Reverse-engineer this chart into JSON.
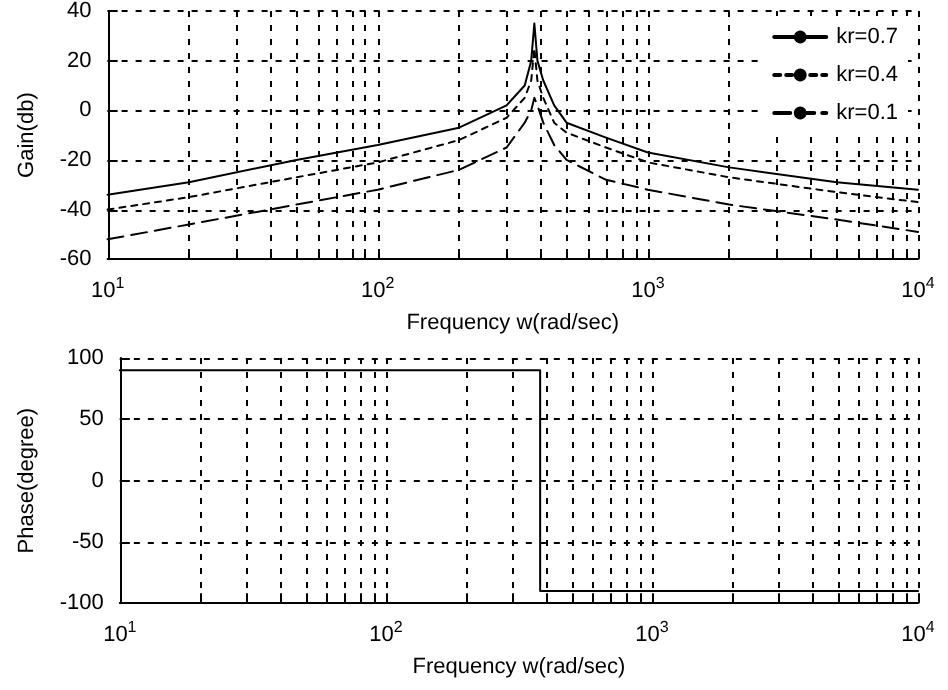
{
  "chart_data": [
    {
      "type": "line",
      "xlabel": "Frequency w(rad/sec)",
      "ylabel": "Gain(db)",
      "log": "x",
      "x": [
        10,
        20,
        50,
        100,
        200,
        300,
        350,
        370,
        380,
        390,
        410,
        450,
        500,
        700,
        1000,
        2000,
        5000,
        10000
      ],
      "series": [
        {
          "name": "kr=0.7",
          "color": "#000000",
          "line_style": "solid",
          "values": [
            -34,
            -29,
            -20,
            -14,
            -7,
            2,
            10,
            20,
            35,
            20,
            12,
            2,
            -5,
            -11,
            -17,
            -23,
            -29,
            -32
          ]
        },
        {
          "name": "kr=0.4",
          "color": "#000000",
          "line_style": "dotted",
          "values": [
            -40,
            -35,
            -27,
            -21,
            -12,
            -3,
            5,
            12,
            25,
            12,
            5,
            -5,
            -9,
            -15,
            -21,
            -27,
            -33,
            -37
          ]
        },
        {
          "name": "kr=0.1",
          "color": "#000000",
          "line_style": "dashed",
          "values": [
            -52,
            -46,
            -38,
            -32,
            -24,
            -15,
            -5,
            0,
            5,
            2,
            -5,
            -14,
            -20,
            -28,
            -32,
            -38,
            -44,
            -49
          ]
        }
      ],
      "xlim": [
        10,
        10000
      ],
      "xticks": [
        {
          "value": 10,
          "label": "10$^{1}$"
        },
        {
          "value": 20,
          "label": null
        },
        {
          "value": 30,
          "label": null
        },
        {
          "value": 40,
          "label": null
        },
        {
          "value": 50,
          "label": null
        },
        {
          "value": 60,
          "label": null
        },
        {
          "value": 70,
          "label": null
        },
        {
          "value": 80,
          "label": null
        },
        {
          "value": 90,
          "label": null
        },
        {
          "value": 100,
          "label": "10$^{2}$"
        },
        {
          "value": 200,
          "label": null
        },
        {
          "value": 300,
          "label": null
        },
        {
          "value": 400,
          "label": null
        },
        {
          "value": 500,
          "label": null
        },
        {
          "value": 600,
          "label": null
        },
        {
          "value": 700,
          "label": null
        },
        {
          "value": 800,
          "label": null
        },
        {
          "value": 900,
          "label": null
        },
        {
          "value": 1000,
          "label": "10$^{3}$"
        },
        {
          "value": 2000,
          "label": null
        },
        {
          "value": 3000,
          "label": null
        },
        {
          "value": 4000,
          "label": null
        },
        {
          "value": 5000,
          "label": null
        },
        {
          "value": 6000,
          "label": null
        },
        {
          "value": 7000,
          "label": null
        },
        {
          "value": 8000,
          "label": null
        },
        {
          "value": 9000,
          "label": null
        },
        {
          "value": 10000,
          "label": "10$^{4}$"
        }
      ],
      "ylim": [
        -60,
        40
      ],
      "yticks": [
        -60,
        -40,
        -20,
        0,
        20,
        40
      ],
      "grid": true,
      "legend": "top right"
    },
    {
      "type": "step",
      "xlabel": "Frequency w(rad/sec)",
      "ylabel": "Phase(degree)",
      "log": "x",
      "x": [
        10,
        380,
        10000
      ],
      "series": [
        {
          "color": "#000000",
          "line_style": "solid",
          "values": [
            90,
            -90,
            -90
          ]
        }
      ],
      "xlim": [
        10,
        10000
      ],
      "xticks": [
        {
          "value": 10,
          "label": "10$^{1}$"
        },
        {
          "value": 20,
          "label": null
        },
        {
          "value": 30,
          "label": null
        },
        {
          "value": 40,
          "label": null
        },
        {
          "value": 50,
          "label": null
        },
        {
          "value": 60,
          "label": null
        },
        {
          "value": 70,
          "label": null
        },
        {
          "value": 80,
          "label": null
        },
        {
          "value": 90,
          "label": null
        },
        {
          "value": 100,
          "label": "10$^{2}$"
        },
        {
          "value": 200,
          "label": null
        },
        {
          "value": 300,
          "label": null
        },
        {
          "value": 400,
          "label": null
        },
        {
          "value": 500,
          "label": null
        },
        {
          "value": 600,
          "label": null
        },
        {
          "value": 700,
          "label": null
        },
        {
          "value": 800,
          "label": null
        },
        {
          "value": 900,
          "label": null
        },
        {
          "value": 1000,
          "label": "10$^{3}$"
        },
        {
          "value": 2000,
          "label": null
        },
        {
          "value": 3000,
          "label": null
        },
        {
          "value": 4000,
          "label": null
        },
        {
          "value": 5000,
          "label": null
        },
        {
          "value": 6000,
          "label": null
        },
        {
          "value": 7000,
          "label": null
        },
        {
          "value": 8000,
          "label": null
        },
        {
          "value": 9000,
          "label": null
        },
        {
          "value": 10000,
          "label": "10$^{4}$"
        }
      ],
      "ylim": [
        -100,
        100
      ],
      "yticks": [
        -100,
        -50,
        0,
        50,
        100
      ],
      "grid": true,
      "legend": false
    }
  ]
}
